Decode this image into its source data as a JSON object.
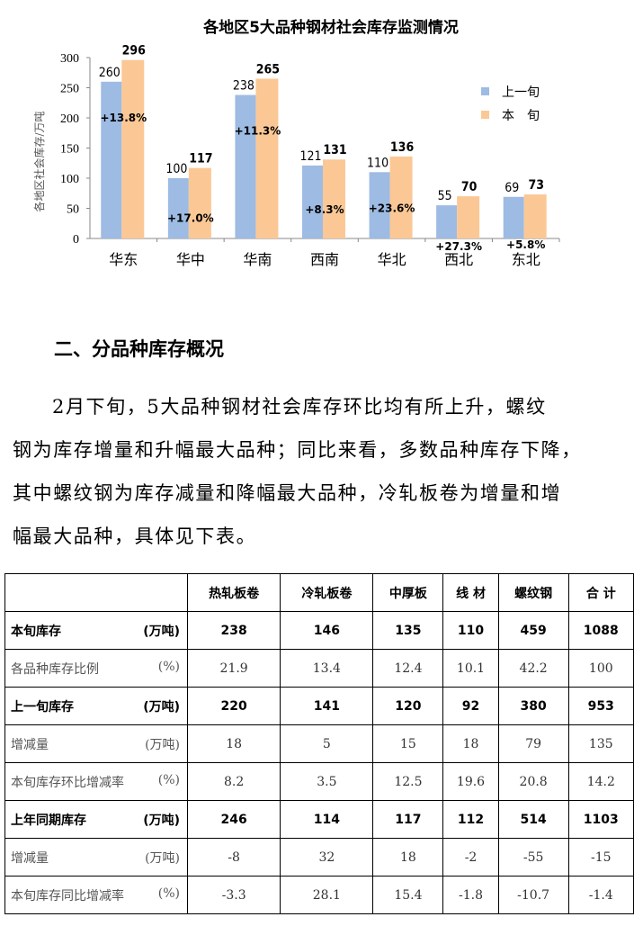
{
  "chart_data": {
    "type": "bar",
    "title": "各地区5大品种钢材社会库存监测情况",
    "ylabel": "各地区社会库存/万吨",
    "xlabel": "",
    "ylim": [
      0,
      300
    ],
    "yticks": [
      0,
      50,
      100,
      150,
      200,
      250,
      300
    ],
    "categories": [
      "华东",
      "华中",
      "华南",
      "西南",
      "华北",
      "西北",
      "东北"
    ],
    "series": [
      {
        "name": "上一旬",
        "color": "#9dbbe3",
        "values": [
          260,
          100,
          238,
          121,
          110,
          55,
          69
        ]
      },
      {
        "name": "本  旬",
        "color": "#fbc895",
        "values": [
          296,
          117,
          265,
          131,
          136,
          70,
          73
        ]
      }
    ],
    "annotations": [
      "+13.8%",
      "+17.0%",
      "+11.3%",
      "+8.3%",
      "+23.6%",
      "+27.3%",
      "+5.8%"
    ],
    "grid": false,
    "legend": "right"
  },
  "section": {
    "heading": "二、分品种库存概况",
    "lines": [
      "2月下旬，5大品种钢材社会库存环比均有所上升，螺纹",
      "钢为库存增量和升幅最大品种；同比来看，多数品种库存下降，",
      "其中螺纹钢为库存减量和降幅最大品种，冷轧板卷为增量和增",
      "幅最大品种，具体见下表。"
    ]
  },
  "table": {
    "headers": [
      "",
      "热轧板卷",
      "冷轧板卷",
      "中厚板",
      "线 材",
      "螺纹钢",
      "合 计"
    ],
    "rows": [
      {
        "label": "本旬库存",
        "unit": "(万吨)",
        "style": "b",
        "cells": [
          "238",
          "146",
          "135",
          "110",
          "459",
          "1088"
        ]
      },
      {
        "label": "各品种库存比例",
        "unit": "(%)",
        "style": "n",
        "cells": [
          "21.9",
          "13.4",
          "12.4",
          "10.1",
          "42.2",
          "100"
        ]
      },
      {
        "label": "上一旬库存",
        "unit": "(万吨)",
        "style": "b",
        "cells": [
          "220",
          "141",
          "120",
          "92",
          "380",
          "953"
        ]
      },
      {
        "label": "增减量",
        "unit": "(万吨)",
        "style": "n",
        "cells": [
          "18",
          "5",
          "15",
          "18",
          "79",
          "135"
        ]
      },
      {
        "label": "本旬库存环比增减率",
        "unit": "(%)",
        "style": "n",
        "cells": [
          "8.2",
          "3.5",
          "12.5",
          "19.6",
          "20.8",
          "14.2"
        ]
      },
      {
        "label": "上年同期库存",
        "unit": "(万吨)",
        "style": "b",
        "cells": [
          "246",
          "114",
          "117",
          "112",
          "514",
          "1103"
        ]
      },
      {
        "label": "增减量",
        "unit": "(万吨)",
        "style": "n",
        "cells": [
          "-8",
          "32",
          "18",
          "-2",
          "-55",
          "-15"
        ]
      },
      {
        "label": "本旬库存同比增减率",
        "unit": "(%)",
        "style": "n",
        "cells": [
          "-3.3",
          "28.1",
          "15.4",
          "-1.8",
          "-10.7",
          "-1.4"
        ]
      }
    ]
  }
}
